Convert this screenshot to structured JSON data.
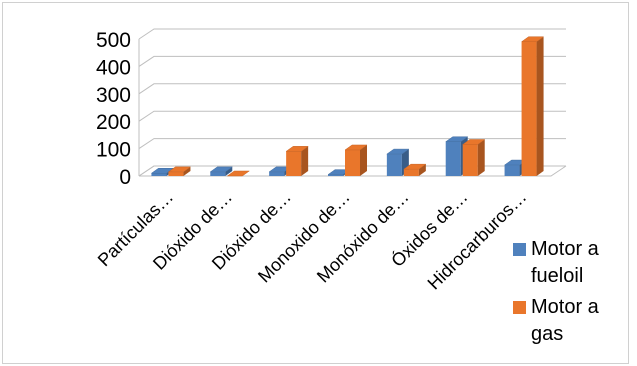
{
  "chart_data": {
    "type": "bar",
    "style": "3d-clustered-column",
    "categories": [
      "Partículas…",
      "Dióxido de…",
      "Dióxido de…",
      "Monoxido de…",
      "Monóxido de…",
      "Óxidos de…",
      "Hidrocarburos…"
    ],
    "series": [
      {
        "name": "Motor a fueloil",
        "values": [
          10,
          15,
          15,
          5,
          80,
          125,
          40
        ],
        "color": "#4f81bd"
      },
      {
        "name": "Motor a gas",
        "values": [
          15,
          0,
          90,
          95,
          25,
          115,
          490
        ],
        "color": "#e9762b"
      }
    ],
    "ylim": [
      0,
      500
    ],
    "yticks": [
      0,
      100,
      200,
      300,
      400,
      500
    ],
    "grid": true,
    "legend": {
      "position": "right",
      "labels": [
        [
          "Motor a",
          "fueloil"
        ],
        [
          "Motor a",
          "gas"
        ]
      ]
    }
  }
}
